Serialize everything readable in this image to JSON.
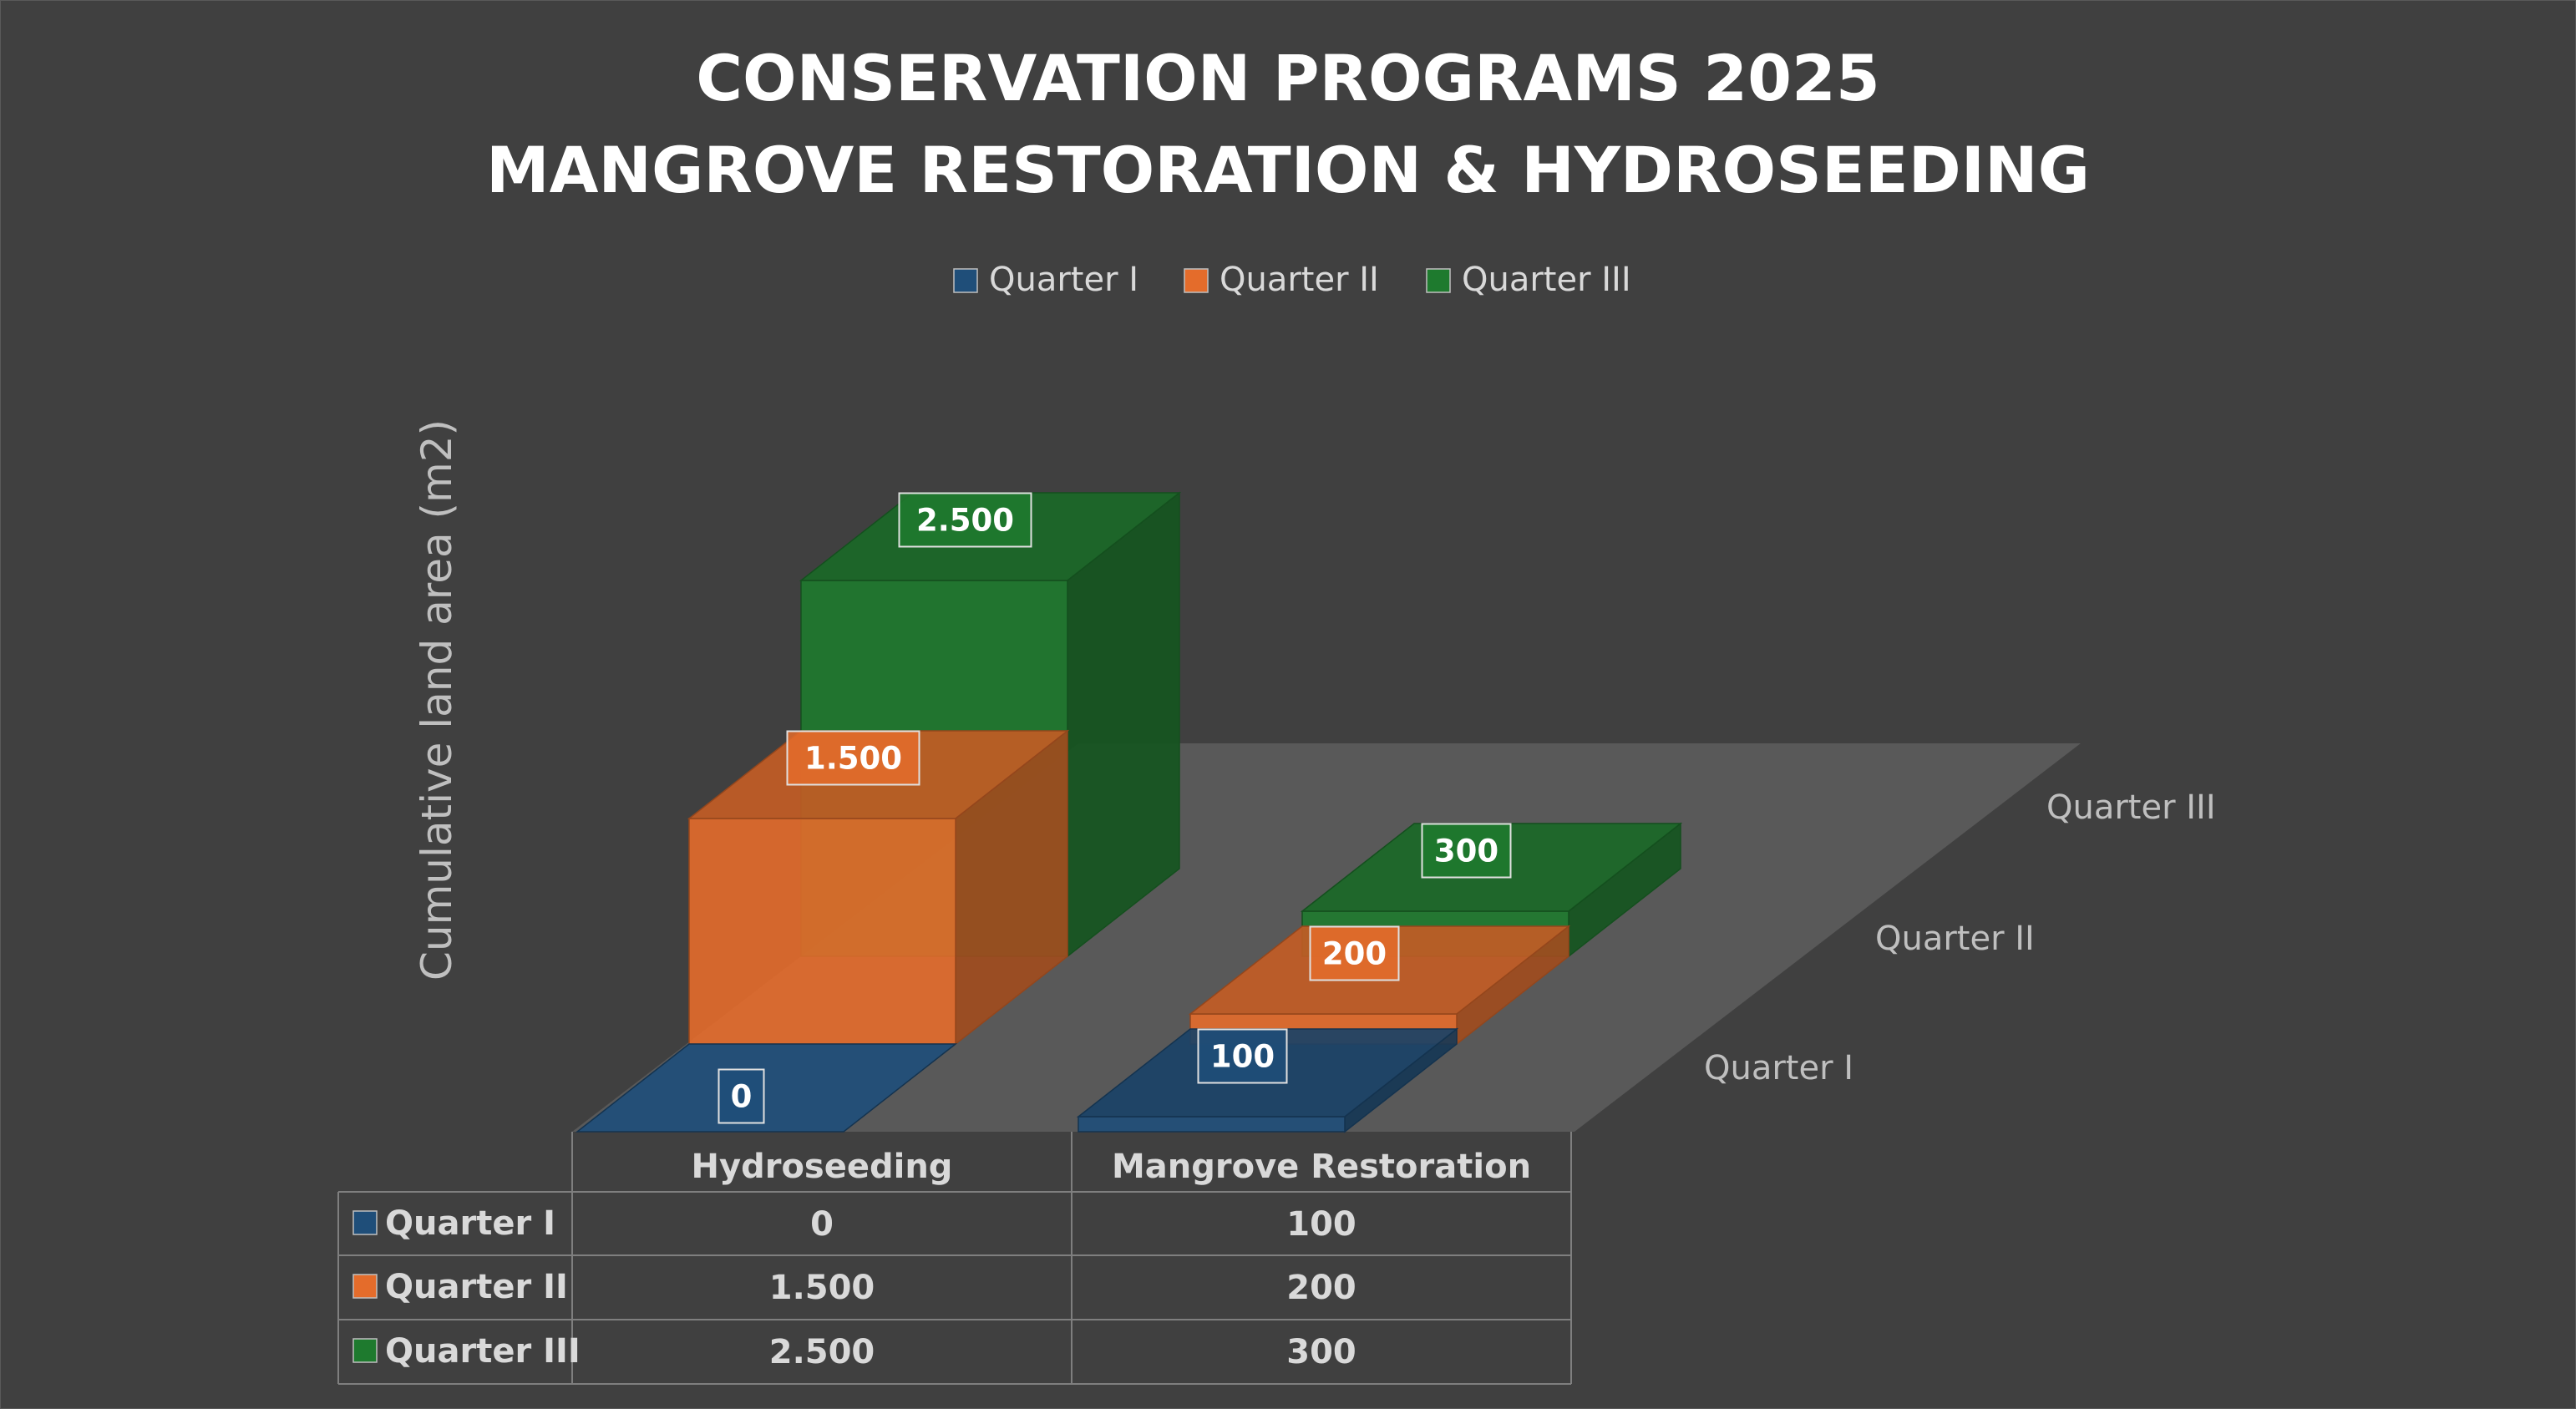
{
  "chart_data": {
    "type": "bar",
    "variant": "3d-column",
    "title_lines": [
      "CONSERVATION PROGRAMS 2025",
      "MANGROVE RESTORATION & HYDROSEEDING"
    ],
    "ylabel": "Cumulative land area (m2)",
    "categories": [
      "Hydroseeding",
      "Mangrove Restoration"
    ],
    "series": [
      {
        "name": "Quarter I",
        "values": [
          0,
          100
        ],
        "labels": [
          "0",
          "100"
        ],
        "color": "#1F4E79"
      },
      {
        "name": "Quarter II",
        "values": [
          1500,
          200
        ],
        "labels": [
          "1.500",
          "200"
        ],
        "color": "#E46C2B"
      },
      {
        "name": "Quarter III",
        "values": [
          2500,
          300
        ],
        "labels": [
          "2.500",
          "300"
        ],
        "color": "#1E7A2E"
      }
    ],
    "ylim": [
      0,
      2500
    ],
    "legend_position": "top",
    "data_table": true,
    "grid": false
  },
  "colors": {
    "background": "#404040",
    "text": "#D9D9D9",
    "title": "#FFFFFF",
    "floor": "#595959"
  }
}
